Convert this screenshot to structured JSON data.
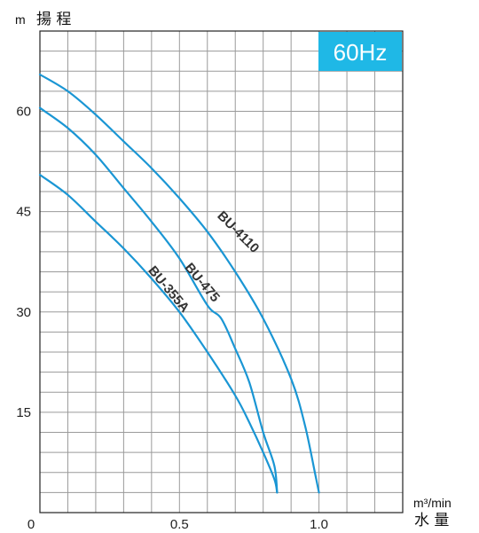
{
  "chart_data": {
    "type": "line",
    "badge": {
      "label": "60Hz",
      "color": "#1fb8e6"
    },
    "y_unit": "m",
    "y_title": "揚 程",
    "x_unit": "m³/min",
    "x_title": "水 量",
    "origin_label": "0",
    "xlim": [
      0,
      1.3
    ],
    "ylim": [
      0,
      72
    ],
    "x_ticks": [
      {
        "value": 0.5,
        "label": "0.5"
      },
      {
        "value": 1.0,
        "label": "1.0"
      }
    ],
    "y_ticks": [
      {
        "value": 15,
        "label": "15"
      },
      {
        "value": 30,
        "label": "30"
      },
      {
        "value": 45,
        "label": "45"
      },
      {
        "value": 60,
        "label": "60"
      }
    ],
    "grid": true,
    "line_color": "#1a96d4",
    "series": [
      {
        "name": "BU-4110",
        "x": [
          0,
          0.1,
          0.2,
          0.3,
          0.4,
          0.5,
          0.6,
          0.7,
          0.8,
          0.9,
          0.95,
          0.99,
          1.0
        ],
        "y": [
          65.5,
          63,
          59.5,
          55.5,
          51.5,
          47,
          42,
          36,
          29,
          20,
          13,
          5,
          3
        ]
      },
      {
        "name": "BU-475",
        "x": [
          0,
          0.1,
          0.2,
          0.3,
          0.4,
          0.5,
          0.6,
          0.65,
          0.7,
          0.75,
          0.8,
          0.84,
          0.85
        ],
        "y": [
          60.5,
          57.5,
          53.5,
          48.5,
          43.5,
          38,
          31,
          29,
          24.5,
          19.5,
          12,
          7,
          3
        ]
      },
      {
        "name": "BU-355A",
        "x": [
          0,
          0.1,
          0.2,
          0.3,
          0.4,
          0.5,
          0.6,
          0.7,
          0.75,
          0.8,
          0.84,
          0.85
        ],
        "y": [
          50.5,
          47.5,
          43.5,
          39.5,
          35,
          30,
          24,
          17.5,
          13.5,
          9,
          5,
          3
        ]
      }
    ]
  }
}
